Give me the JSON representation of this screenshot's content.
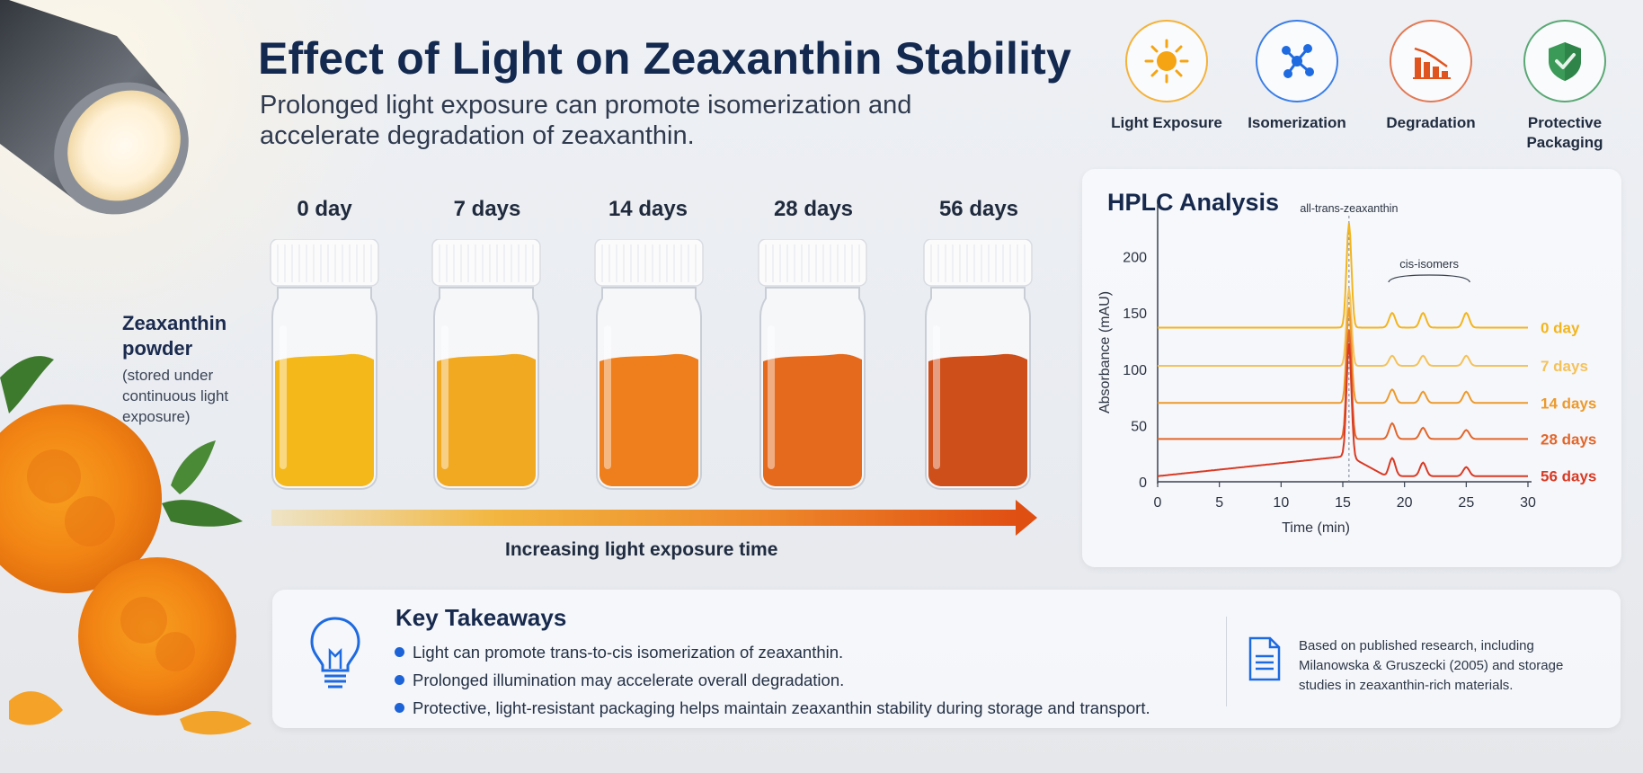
{
  "title": "Effect of Light on Zeaxanthin Stability",
  "subtitle": "Prolonged light exposure can promote isomerization and accelerate degradation of zeaxanthin.",
  "icons": [
    {
      "label": "Light Exposure",
      "icon": "sun-icon",
      "color": "#f2a21a"
    },
    {
      "label": "Isomerization",
      "icon": "molecule-icon",
      "color": "#1e6ae0"
    },
    {
      "label": "Degradation",
      "icon": "declining-bars-icon",
      "color": "#e0551f"
    },
    {
      "label": "Protective Packaging",
      "icon": "shield-check-icon",
      "color": "#3b9a57"
    }
  ],
  "sample": {
    "title": "Zeaxanthin powder",
    "note": "(stored under continuous light exposure)"
  },
  "timepoints": [
    {
      "label": "0 day",
      "color": "#f4b81b"
    },
    {
      "label": "7 days",
      "color": "#f1a922"
    },
    {
      "label": "14 days",
      "color": "#ee7f1c"
    },
    {
      "label": "28 days",
      "color": "#e66a1d"
    },
    {
      "label": "56 days",
      "color": "#cf4f1a"
    }
  ],
  "arrow_label": "Increasing light exposure time",
  "hplc": {
    "title": "HPLC Analysis",
    "peak_label": "all-trans-zeaxanthin",
    "isomer_label": "cis-isomers",
    "xlabel": "Time (min)",
    "ylabel": "Absorbance (mAU)",
    "chart_data": {
      "type": "line",
      "x_ticks": [
        0,
        5,
        10,
        15,
        20,
        25,
        30
      ],
      "y_ticks": [
        0,
        50,
        100,
        150,
        200
      ],
      "xlim": [
        0,
        30
      ],
      "ylim": [
        0,
        230
      ],
      "series": [
        {
          "name": "0 day",
          "color": "#f2b51e",
          "baseline": 137,
          "main_peak": 230,
          "cis_peaks": [
            13,
            13,
            13
          ],
          "drift": 0
        },
        {
          "name": "7 days",
          "color": "#f4c25a",
          "baseline": 103,
          "main_peak": 172,
          "cis_peaks": [
            9,
            9,
            9
          ],
          "drift": 0
        },
        {
          "name": "14 days",
          "color": "#ec9a2c",
          "baseline": 70,
          "main_peak": 155,
          "cis_peaks": [
            12,
            10,
            10
          ],
          "drift": 0
        },
        {
          "name": "28 days",
          "color": "#e2662a",
          "baseline": 38,
          "main_peak": 135,
          "cis_peaks": [
            14,
            10,
            8
          ],
          "drift": 0
        },
        {
          "name": "56 days",
          "color": "#d83a24",
          "baseline": 5,
          "main_peak": 105,
          "cis_peaks": [
            16,
            12,
            8
          ],
          "drift": 18
        }
      ],
      "main_peak_time": 15.5,
      "cis_peak_times": [
        19.0,
        21.5,
        25.0
      ]
    }
  },
  "takeaways": {
    "title": "Key Takeaways",
    "items": [
      "Light can promote trans-to-cis isomerization of zeaxanthin.",
      "Prolonged illumination may accelerate overall degradation.",
      "Protective, light-resistant packaging helps maintain zeaxanthin stability during storage and transport."
    ],
    "note": "Based on published research, including Milanowska & Gruszecki (2005) and storage studies in zeaxanthin-rich materials."
  }
}
